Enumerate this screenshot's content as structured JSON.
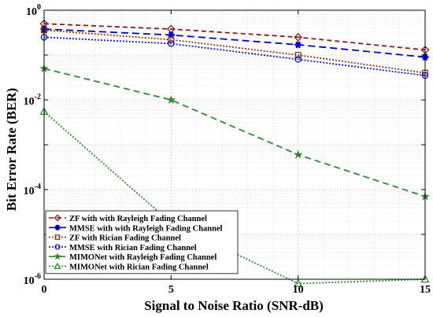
{
  "chart_data": {
    "type": "line",
    "title": "",
    "xlabel": "Signal to Noise Ratio (SNR-dB)",
    "ylabel": "Bit Error Rate (BER)",
    "x": [
      0,
      5,
      10,
      15
    ],
    "xlim": [
      0,
      15
    ],
    "ylim": [
      1e-06,
      1
    ],
    "yscale": "log",
    "grid": true,
    "legend_position": "bottom-left",
    "x_ticks": [
      "0",
      "5",
      "10",
      "15"
    ],
    "y_tick_bases": [
      "10",
      "10",
      "10",
      "10"
    ],
    "y_tick_exponents": [
      "-6",
      "-4",
      "-2",
      "0"
    ],
    "series": [
      {
        "name": "ZF with with Rayleigh Fading Channel",
        "values": [
          0.5,
          0.38,
          0.25,
          0.13
        ],
        "color": "#8b1a1a",
        "dash": "6,4",
        "marker": "diamond"
      },
      {
        "name": "MMSE with with Rayleigh Fading Channel",
        "values": [
          0.38,
          0.28,
          0.17,
          0.09
        ],
        "color": "#0000cc",
        "dash": "9,5",
        "marker": "star6"
      },
      {
        "name": "ZF with Rician Fading Channel",
        "values": [
          0.36,
          0.22,
          0.1,
          0.04
        ],
        "color": "#8b3a1a",
        "dash": "2,2",
        "marker": "square"
      },
      {
        "name": "MMSE with Rician Fading Channel",
        "values": [
          0.25,
          0.18,
          0.08,
          0.035
        ],
        "color": "#1010cc",
        "dash": "2,2",
        "marker": "circle"
      },
      {
        "name": "MIMONet with Rayleigh Fading Channel",
        "values": [
          0.05,
          0.01,
          0.0006,
          7e-05
        ],
        "color": "#2e8b2e",
        "dash": "8,5",
        "marker": "star5"
      },
      {
        "name": "MIMONet with Rician Fading Channel",
        "values": [
          0.0055,
          1.8e-05,
          8e-07,
          1e-06
        ],
        "color": "#2e8b2e",
        "dash": "2,2",
        "marker": "triangle"
      }
    ]
  }
}
